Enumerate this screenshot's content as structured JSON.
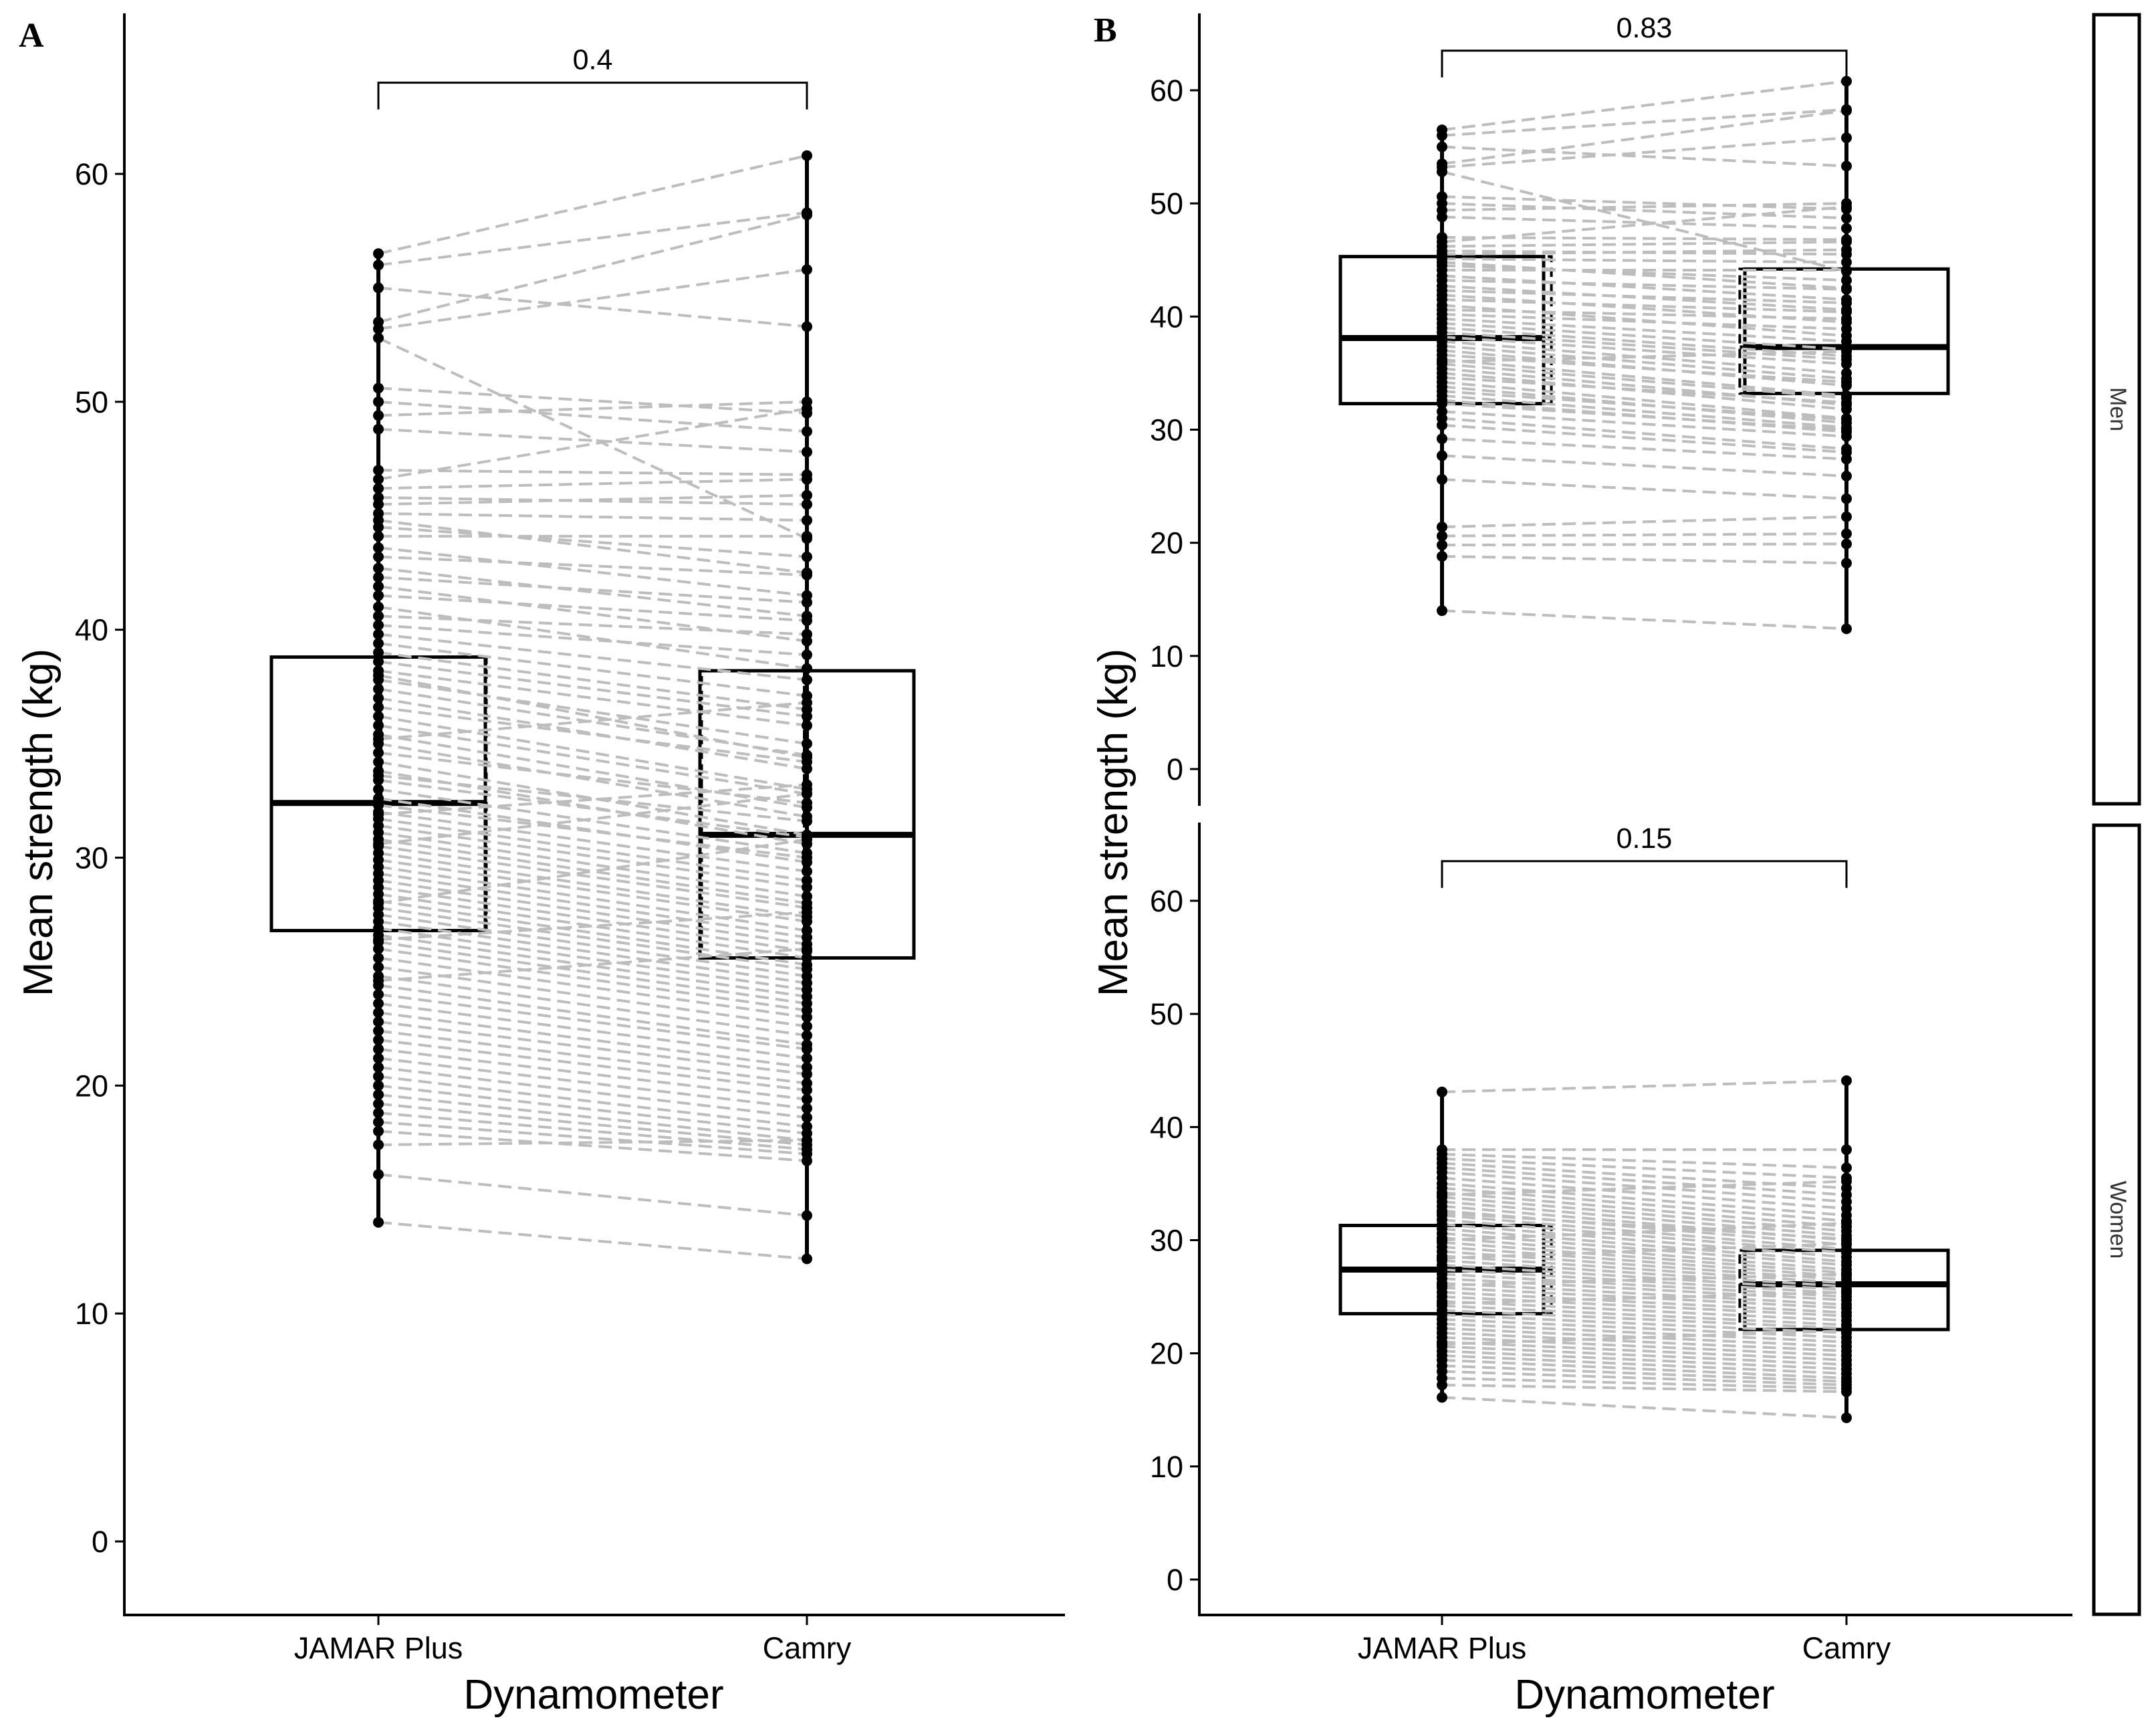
{
  "chart_data": [
    {
      "type": "paired-boxplot",
      "panel_label": "A",
      "xlabel": "Dynamometer",
      "ylabel": "Mean strength (kg)",
      "categories": [
        "JAMAR Plus",
        "Camry"
      ],
      "ylim": [
        -3,
        67
      ],
      "yticks": [
        0,
        10,
        20,
        30,
        40,
        50,
        60
      ],
      "boxes": [
        {
          "category": "JAMAR Plus",
          "q1": 26.8,
          "median": 32.4,
          "q3": 38.8,
          "min": 14.0,
          "max": 56.5
        },
        {
          "category": "Camry",
          "q1": 25.6,
          "median": 31.0,
          "q3": 38.2,
          "min": 12.4,
          "max": 60.8
        }
      ],
      "comparison": {
        "p_value": "0.4",
        "y": 64.0
      },
      "pairs": [
        [
          56.5,
          60.8
        ],
        [
          56.0,
          58.3
        ],
        [
          55.0,
          53.3
        ],
        [
          53.5,
          58.2
        ],
        [
          53.2,
          55.8
        ],
        [
          52.8,
          44.0
        ],
        [
          50.6,
          49.5
        ],
        [
          50.0,
          48.7
        ],
        [
          49.4,
          50.0
        ],
        [
          48.8,
          47.8
        ],
        [
          47.0,
          46.8
        ],
        [
          46.6,
          49.7
        ],
        [
          46.2,
          46.6
        ],
        [
          45.8,
          45.5
        ],
        [
          45.5,
          45.9
        ],
        [
          45.1,
          44.8
        ],
        [
          44.8,
          42.5
        ],
        [
          44.5,
          43.2
        ],
        [
          44.1,
          44.1
        ],
        [
          43.6,
          41.5
        ],
        [
          43.2,
          42.4
        ],
        [
          42.7,
          40.6
        ],
        [
          42.3,
          41.2
        ],
        [
          41.9,
          39.5
        ],
        [
          41.5,
          40.4
        ],
        [
          41.0,
          38.3
        ],
        [
          40.6,
          39.8
        ],
        [
          40.2,
          38.9
        ],
        [
          39.8,
          37.8
        ],
        [
          39.4,
          37.1
        ],
        [
          39.0,
          36.5
        ],
        [
          38.6,
          36.2
        ],
        [
          38.2,
          35.8
        ],
        [
          37.8,
          35.0
        ],
        [
          37.4,
          34.5
        ],
        [
          37.0,
          33.9
        ],
        [
          36.6,
          34.2
        ],
        [
          36.2,
          33.0
        ],
        [
          35.8,
          32.8
        ],
        [
          35.4,
          32.2
        ],
        [
          35.0,
          31.8
        ],
        [
          34.6,
          32.4
        ],
        [
          34.2,
          31.0
        ],
        [
          33.8,
          30.6
        ],
        [
          33.4,
          30.9
        ],
        [
          33.0,
          30.2
        ],
        [
          32.6,
          29.8
        ],
        [
          32.3,
          30.0
        ],
        [
          32.0,
          29.4
        ],
        [
          31.7,
          29.0
        ],
        [
          31.4,
          28.7
        ],
        [
          31.1,
          28.3
        ],
        [
          30.8,
          28.0
        ],
        [
          30.5,
          27.8
        ],
        [
          30.2,
          27.4
        ],
        [
          29.9,
          27.2
        ],
        [
          29.6,
          26.8
        ],
        [
          29.3,
          26.5
        ],
        [
          29.0,
          26.2
        ],
        [
          28.7,
          25.9
        ],
        [
          28.4,
          25.6
        ],
        [
          28.1,
          25.3
        ],
        [
          27.8,
          25.1
        ],
        [
          27.5,
          24.8
        ],
        [
          27.2,
          24.5
        ],
        [
          26.9,
          24.2
        ],
        [
          26.6,
          23.9
        ],
        [
          26.3,
          23.6
        ],
        [
          26.0,
          23.3
        ],
        [
          25.6,
          23.0
        ],
        [
          25.2,
          22.6
        ],
        [
          24.8,
          22.2
        ],
        [
          24.4,
          21.8
        ],
        [
          24.0,
          21.6
        ],
        [
          23.6,
          21.2
        ],
        [
          23.2,
          20.8
        ],
        [
          22.8,
          20.5
        ],
        [
          22.4,
          20.1
        ],
        [
          22.0,
          19.8
        ],
        [
          21.6,
          19.4
        ],
        [
          21.2,
          19.0
        ],
        [
          20.8,
          18.6
        ],
        [
          20.4,
          18.2
        ],
        [
          20.0,
          17.9
        ],
        [
          19.6,
          17.6
        ],
        [
          19.2,
          17.4
        ],
        [
          18.8,
          17.2
        ],
        [
          18.4,
          17.0
        ],
        [
          18.0,
          16.7
        ],
        [
          17.4,
          17.6
        ],
        [
          16.1,
          14.3
        ],
        [
          14.0,
          12.4
        ],
        [
          33.6,
          31.6
        ],
        [
          31.9,
          33.2
        ],
        [
          28.0,
          30.8
        ],
        [
          26.4,
          27.6
        ],
        [
          30.6,
          32.8
        ],
        [
          35.2,
          36.8
        ],
        [
          24.6,
          26.0
        ],
        [
          38.0,
          34.4
        ]
      ]
    },
    {
      "type": "paired-boxplot",
      "panel_label": "B",
      "facet": "Men",
      "xlabel": "Dynamometer",
      "ylabel": "Mean strength (kg)",
      "categories": [
        "JAMAR Plus",
        "Camry"
      ],
      "ylim": [
        -3,
        67
      ],
      "yticks": [
        0,
        10,
        20,
        30,
        40,
        50,
        60
      ],
      "boxes": [
        {
          "category": "JAMAR Plus",
          "q1": 32.3,
          "median": 38.1,
          "q3": 45.3,
          "min": 14.0,
          "max": 56.5
        },
        {
          "category": "Camry",
          "q1": 33.2,
          "median": 37.3,
          "q3": 44.2,
          "min": 12.4,
          "max": 60.8
        }
      ],
      "comparison": {
        "p_value": "0.83",
        "y": 63.5
      },
      "pairs": [
        [
          56.5,
          60.8
        ],
        [
          56.0,
          58.3
        ],
        [
          55.0,
          53.3
        ],
        [
          53.5,
          58.2
        ],
        [
          53.2,
          55.8
        ],
        [
          52.8,
          44.0
        ],
        [
          50.6,
          49.5
        ],
        [
          50.0,
          48.7
        ],
        [
          49.4,
          50.0
        ],
        [
          48.8,
          47.8
        ],
        [
          47.0,
          46.8
        ],
        [
          46.6,
          49.7
        ],
        [
          46.2,
          46.6
        ],
        [
          45.8,
          45.5
        ],
        [
          45.5,
          45.9
        ],
        [
          45.1,
          44.8
        ],
        [
          44.8,
          42.5
        ],
        [
          44.5,
          43.2
        ],
        [
          44.1,
          44.1
        ],
        [
          43.6,
          41.5
        ],
        [
          43.2,
          42.4
        ],
        [
          42.7,
          40.6
        ],
        [
          42.3,
          41.2
        ],
        [
          41.9,
          39.5
        ],
        [
          41.5,
          40.4
        ],
        [
          41.0,
          38.3
        ],
        [
          40.6,
          39.8
        ],
        [
          40.2,
          38.9
        ],
        [
          39.8,
          37.8
        ],
        [
          39.4,
          37.1
        ],
        [
          39.0,
          36.5
        ],
        [
          38.6,
          36.2
        ],
        [
          38.2,
          35.8
        ],
        [
          37.8,
          35.0
        ],
        [
          37.4,
          34.5
        ],
        [
          37.0,
          33.9
        ],
        [
          36.6,
          34.2
        ],
        [
          36.2,
          33.0
        ],
        [
          35.8,
          32.8
        ],
        [
          35.4,
          32.2
        ],
        [
          35.0,
          31.8
        ],
        [
          34.6,
          32.4
        ],
        [
          34.2,
          31.0
        ],
        [
          33.8,
          30.6
        ],
        [
          33.4,
          30.9
        ],
        [
          33.0,
          30.2
        ],
        [
          32.6,
          29.8
        ],
        [
          32.3,
          30.0
        ],
        [
          31.6,
          29.4
        ],
        [
          31.0,
          28.3
        ],
        [
          30.4,
          28.0
        ],
        [
          29.2,
          27.4
        ],
        [
          27.7,
          25.9
        ],
        [
          25.6,
          23.9
        ],
        [
          21.4,
          22.3
        ],
        [
          20.6,
          20.8
        ],
        [
          19.8,
          19.9
        ],
        [
          18.8,
          18.2
        ],
        [
          14.0,
          12.4
        ],
        [
          36.0,
          36.9
        ]
      ]
    },
    {
      "type": "paired-boxplot",
      "panel_label": "B",
      "facet": "Women",
      "xlabel": "Dynamometer",
      "ylabel": "Mean strength (kg)",
      "categories": [
        "JAMAR Plus",
        "Camry"
      ],
      "ylim": [
        -3,
        67
      ],
      "yticks": [
        0,
        10,
        20,
        30,
        40,
        50,
        60
      ],
      "boxes": [
        {
          "category": "JAMAR Plus",
          "q1": 23.5,
          "median": 27.4,
          "q3": 31.3,
          "min": 16.1,
          "max": 43.1
        },
        {
          "category": "Camry",
          "q1": 22.1,
          "median": 26.1,
          "q3": 29.1,
          "min": 14.3,
          "max": 44.1
        }
      ],
      "comparison": {
        "p_value": "0.15",
        "y": 63.5
      },
      "pairs": [
        [
          43.1,
          44.1
        ],
        [
          38.0,
          38.0
        ],
        [
          37.6,
          36.4
        ],
        [
          37.2,
          35.5
        ],
        [
          36.8,
          34.6
        ],
        [
          36.4,
          34.0
        ],
        [
          36.0,
          33.4
        ],
        [
          35.5,
          32.8
        ],
        [
          35.0,
          32.2
        ],
        [
          34.6,
          31.7
        ],
        [
          34.2,
          31.2
        ],
        [
          33.8,
          30.8
        ],
        [
          33.4,
          30.4
        ],
        [
          33.0,
          30.0
        ],
        [
          32.6,
          29.6
        ],
        [
          32.2,
          29.2
        ],
        [
          31.8,
          28.9
        ],
        [
          31.4,
          28.5
        ],
        [
          31.0,
          28.1
        ],
        [
          30.6,
          27.8
        ],
        [
          30.2,
          27.4
        ],
        [
          29.8,
          27.1
        ],
        [
          29.4,
          26.8
        ],
        [
          29.0,
          26.5
        ],
        [
          28.6,
          26.2
        ],
        [
          28.2,
          25.9
        ],
        [
          27.8,
          25.6
        ],
        [
          27.4,
          25.3
        ],
        [
          27.0,
          25.0
        ],
        [
          26.6,
          24.7
        ],
        [
          26.2,
          24.3
        ],
        [
          25.8,
          24.0
        ],
        [
          25.4,
          23.6
        ],
        [
          25.0,
          23.3
        ],
        [
          24.6,
          22.9
        ],
        [
          24.2,
          22.5
        ],
        [
          23.8,
          22.2
        ],
        [
          23.4,
          21.8
        ],
        [
          23.0,
          21.4
        ],
        [
          22.6,
          21.0
        ],
        [
          22.2,
          20.6
        ],
        [
          21.8,
          20.2
        ],
        [
          21.4,
          19.8
        ],
        [
          21.0,
          19.4
        ],
        [
          20.6,
          19.0
        ],
        [
          20.2,
          18.6
        ],
        [
          19.8,
          18.2
        ],
        [
          19.4,
          17.8
        ],
        [
          18.9,
          17.5
        ],
        [
          18.4,
          17.2
        ],
        [
          17.8,
          16.9
        ],
        [
          17.2,
          16.6
        ],
        [
          16.1,
          14.3
        ],
        [
          30.0,
          31.5
        ],
        [
          28.4,
          29.7
        ],
        [
          26.0,
          27.0
        ],
        [
          24.4,
          25.4
        ],
        [
          32.4,
          30.1
        ],
        [
          20.8,
          22.0
        ],
        [
          34.0,
          35.2
        ]
      ]
    }
  ]
}
